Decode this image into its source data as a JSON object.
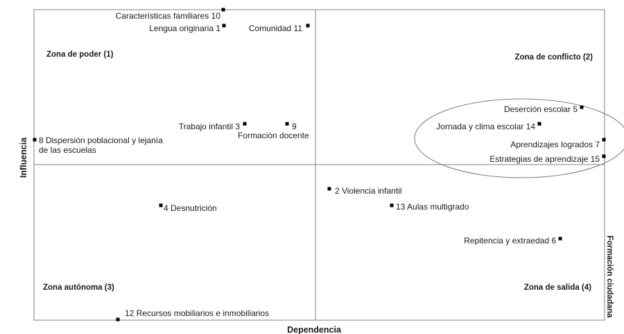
{
  "chart_data": {
    "type": "scatter",
    "title": "",
    "xlabel": "Dependencia",
    "ylabel": "Influencia",
    "side_label": "Formación ciudadana",
    "grid": false,
    "colors": {
      "axis": "#808080",
      "marker": "#000000",
      "text": "#1a1a1a",
      "ellipse": "#808080"
    },
    "zones": [
      {
        "label": "Zona de poder (1)",
        "quadrant": "top-left"
      },
      {
        "label": "Zona de conflicto (2)",
        "quadrant": "top-right"
      },
      {
        "label": "Zona autónoma (3)",
        "quadrant": "bottom-left"
      },
      {
        "label": "Zona de salida (4)",
        "quadrant": "bottom-right"
      }
    ],
    "points": [
      {
        "id": 1,
        "label": "Lengua originaria  1"
      },
      {
        "id": 2,
        "label": "2  Violencia infantil"
      },
      {
        "id": 3,
        "label": "Trabajo infantil  3"
      },
      {
        "id": 4,
        "label": "4 Desnutrición"
      },
      {
        "id": 5,
        "label": "Deserción escolar     5"
      },
      {
        "id": 6,
        "label": "Repitencia y extraedad   6"
      },
      {
        "id": 7,
        "label": "Aprendizajes logrados   7"
      },
      {
        "id": 8,
        "label": "8  Dispersión poblacional y lejanía",
        "label2": "de las escuelas"
      },
      {
        "id": 9,
        "label": "9",
        "label2": "Formación docente"
      },
      {
        "id": 10,
        "label": "Características familiares  10"
      },
      {
        "id": 11,
        "label": "Comunidad  11"
      },
      {
        "id": 12,
        "label": "12  Recursos mobiliarios e inmobiliarios"
      },
      {
        "id": 13,
        "label": "13  Aulas multigrado"
      },
      {
        "id": 14,
        "label": "Jornada y clima escolar  14"
      },
      {
        "id": 15,
        "label": "Estrategias de aprendizaje   15"
      }
    ]
  }
}
